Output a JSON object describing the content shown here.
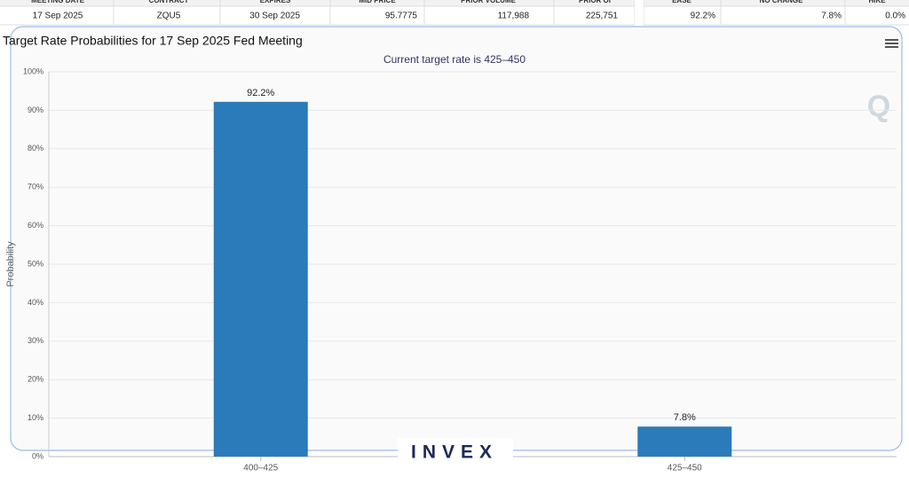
{
  "table": {
    "header": [
      "MEETING DATE",
      "CONTRACT",
      "EXPIRES",
      "MID PRICE",
      "PRIOR VOLUME",
      "PRIOR OI",
      "EASE",
      "NO CHANGE",
      "HIKE"
    ],
    "row": [
      "17 Sep 2025",
      "ZQU5",
      "30 Sep 2025",
      "95.7775",
      "117,988",
      "225,751",
      "92.2%",
      "7.8%",
      "0.0%"
    ]
  },
  "chart_data": {
    "type": "bar",
    "title": "Target Rate Probabilities for 17 Sep 2025 Fed Meeting",
    "subtitle": "Current target rate is 425–450",
    "y_label": "Probability",
    "watermark": "INVEX",
    "categories": [
      "400–425",
      "425–450"
    ],
    "values": [
      92.2,
      7.8
    ],
    "value_labels": [
      "92.2%",
      "7.8%"
    ],
    "color": "#2b7bba",
    "ylim": [
      0,
      100
    ],
    "yticks": [
      {
        "value": 0,
        "label": "0%"
      },
      {
        "value": 10,
        "label": "10%"
      },
      {
        "value": 20,
        "label": "20%"
      },
      {
        "value": 30,
        "label": "30%"
      },
      {
        "value": 40,
        "label": "40%"
      },
      {
        "value": 50,
        "label": "50%"
      },
      {
        "value": 60,
        "label": "60%"
      },
      {
        "value": 70,
        "label": "70%"
      },
      {
        "value": 80,
        "label": "80%"
      },
      {
        "value": 90,
        "label": "90%"
      },
      {
        "value": 100,
        "label": "100%"
      }
    ],
    "grid": true
  }
}
